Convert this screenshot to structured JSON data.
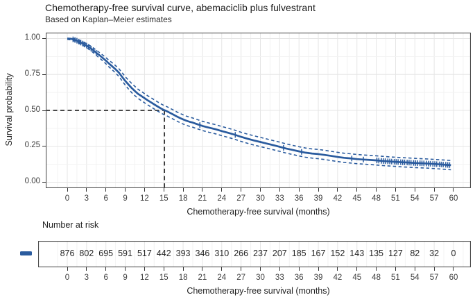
{
  "header": {
    "title": "Chemotherapy-free survival curve, abemaciclib plus fulvestrant",
    "subtitle": "Based on Kaplan–Meier estimates"
  },
  "chart_data": {
    "type": "line",
    "subtype": "kaplan-meier",
    "title": "Chemotherapy-free survival curve, abemaciclib plus fulvestrant",
    "subtitle": "Based on Kaplan–Meier estimates",
    "xlabel": "Chemotherapy-free survival (months)",
    "ylabel": "Survival probability",
    "xlim": [
      0,
      60
    ],
    "ylim": [
      0,
      1
    ],
    "x_ticks": [
      0,
      3,
      6,
      9,
      12,
      15,
      18,
      21,
      24,
      27,
      30,
      33,
      36,
      39,
      42,
      45,
      48,
      51,
      54,
      57,
      60
    ],
    "y_ticks": [
      {
        "label": "1.00",
        "value": 1.0
      },
      {
        "label": "0.75",
        "value": 0.75
      },
      {
        "label": "0.50",
        "value": 0.5
      },
      {
        "label": "0.25",
        "value": 0.25
      },
      {
        "label": "0.00",
        "value": 0.0
      }
    ],
    "grid": "major+minor",
    "median_line": {
      "x": 15.1,
      "y": 0.5,
      "style": "dashed"
    },
    "series": [
      {
        "name": "abemaciclib plus fulvestrant",
        "color": "#2a5b9e",
        "ci_style": "dashed",
        "points": [
          [
            0,
            1.0
          ],
          [
            0.6,
            0.998
          ],
          [
            1,
            0.993
          ],
          [
            1.5,
            0.985
          ],
          [
            2,
            0.974
          ],
          [
            2.5,
            0.963
          ],
          [
            3,
            0.951
          ],
          [
            3.5,
            0.936
          ],
          [
            4,
            0.92
          ],
          [
            4.5,
            0.901
          ],
          [
            5,
            0.884
          ],
          [
            5.5,
            0.865
          ],
          [
            6,
            0.846
          ],
          [
            6.5,
            0.825
          ],
          [
            7,
            0.806
          ],
          [
            7.5,
            0.786
          ],
          [
            8,
            0.764
          ],
          [
            8.5,
            0.735
          ],
          [
            9,
            0.706
          ],
          [
            9.5,
            0.68
          ],
          [
            10,
            0.656
          ],
          [
            10.5,
            0.635
          ],
          [
            11,
            0.615
          ],
          [
            11.5,
            0.6
          ],
          [
            12,
            0.585
          ],
          [
            12.5,
            0.57
          ],
          [
            13,
            0.556
          ],
          [
            13.5,
            0.542
          ],
          [
            14,
            0.528
          ],
          [
            14.5,
            0.515
          ],
          [
            15,
            0.503
          ],
          [
            15.3,
            0.498
          ],
          [
            16,
            0.482
          ],
          [
            16.5,
            0.47
          ],
          [
            17,
            0.458
          ],
          [
            17.5,
            0.447
          ],
          [
            18,
            0.437
          ],
          [
            18.5,
            0.428
          ],
          [
            19,
            0.421
          ],
          [
            19.5,
            0.415
          ],
          [
            20,
            0.407
          ],
          [
            21,
            0.392
          ],
          [
            22,
            0.38
          ],
          [
            23,
            0.369
          ],
          [
            24,
            0.356
          ],
          [
            25,
            0.344
          ],
          [
            26,
            0.331
          ],
          [
            27,
            0.316
          ],
          [
            28,
            0.303
          ],
          [
            29,
            0.291
          ],
          [
            30,
            0.28
          ],
          [
            31,
            0.269
          ],
          [
            32,
            0.258
          ],
          [
            33,
            0.247
          ],
          [
            34,
            0.235
          ],
          [
            35,
            0.225
          ],
          [
            36,
            0.215
          ],
          [
            37,
            0.206
          ],
          [
            38,
            0.2
          ],
          [
            39,
            0.196
          ],
          [
            40,
            0.19
          ],
          [
            41,
            0.183
          ],
          [
            42,
            0.176
          ],
          [
            43,
            0.17
          ],
          [
            44,
            0.166
          ],
          [
            45,
            0.161
          ],
          [
            46,
            0.158
          ],
          [
            47,
            0.155
          ],
          [
            48,
            0.152
          ],
          [
            49,
            0.148
          ],
          [
            50,
            0.145
          ],
          [
            51,
            0.142
          ],
          [
            52,
            0.139
          ],
          [
            53,
            0.137
          ],
          [
            54,
            0.134
          ],
          [
            55,
            0.132
          ],
          [
            56,
            0.13
          ],
          [
            57,
            0.127
          ],
          [
            58,
            0.124
          ],
          [
            59,
            0.121
          ],
          [
            59.6,
            0.119
          ]
        ],
        "ci_delta": {
          "base": 0.006,
          "growth": 0.026,
          "full_at_month": 10
        },
        "censor_months": [
          0.9,
          1.2,
          1.5,
          1.8,
          2.1,
          2.4,
          2.7,
          3.0,
          3.3,
          3.7,
          4.1,
          4.5,
          20.6,
          26.1,
          33.6,
          36.4,
          44.2,
          46.0,
          48.1,
          48.4,
          48.8,
          49.1,
          49.4,
          49.8,
          50.1,
          50.4,
          50.8,
          51.1,
          51.4,
          51.8,
          52.1,
          52.4,
          52.8,
          53.1,
          53.4,
          53.8,
          54.1,
          54.4,
          54.8,
          55.1,
          55.4,
          55.8,
          56.1,
          56.4,
          56.8,
          57.1,
          57.4,
          57.8,
          58.1,
          58.4,
          58.8,
          59.1,
          59.4
        ]
      }
    ],
    "risk_table": {
      "label": "Number at risk",
      "x": [
        0,
        3,
        6,
        9,
        12,
        15,
        18,
        21,
        24,
        27,
        30,
        33,
        36,
        39,
        42,
        45,
        48,
        51,
        54,
        57,
        60
      ],
      "values": [
        876,
        802,
        695,
        591,
        517,
        442,
        393,
        346,
        310,
        266,
        237,
        207,
        185,
        167,
        152,
        143,
        135,
        127,
        82,
        32,
        0
      ]
    },
    "colors": {
      "line": "#2a5b9e",
      "grid_major": "#e5e5e5",
      "grid_minor": "#f2f2f2",
      "panel_border": "#4f4f4f",
      "median_dash": "#2f2f2f",
      "tick": "#333333",
      "text": "#1a1a1a"
    }
  }
}
